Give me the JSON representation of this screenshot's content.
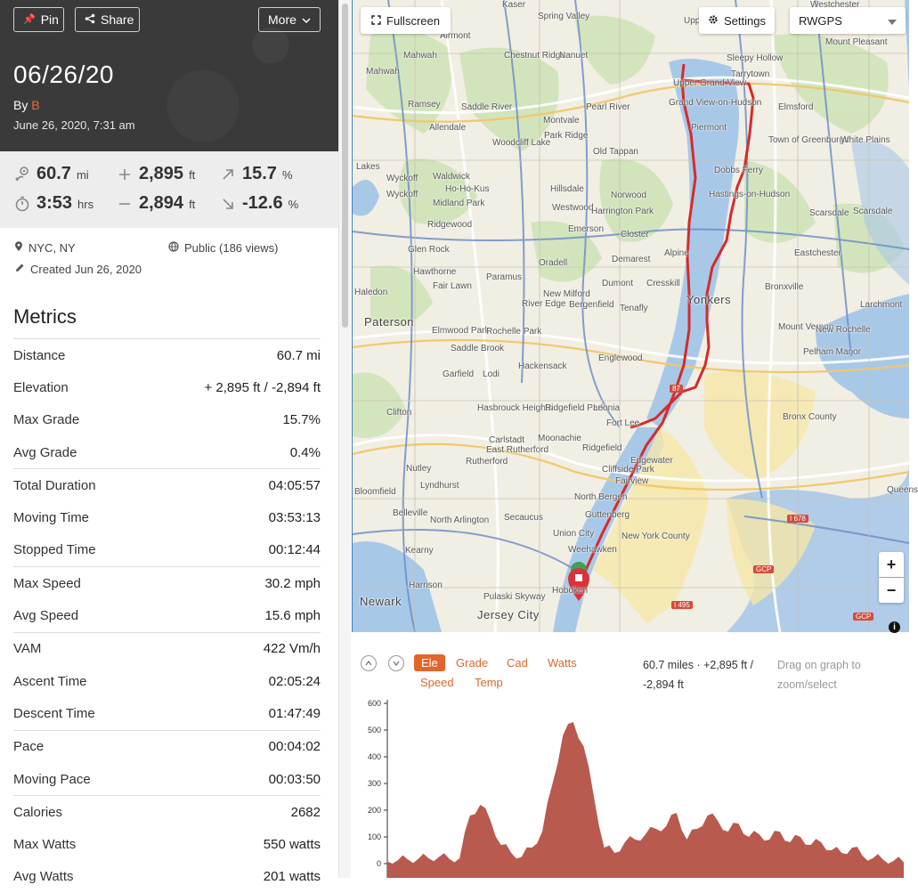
{
  "header": {
    "pin_label": "Pin",
    "share_label": "Share",
    "more_label": "More",
    "title": "06/26/20",
    "by_prefix": "By",
    "user": "B",
    "datetime": "June 26, 2020, 7:31 am"
  },
  "stats": {
    "distance": {
      "value": "60.7",
      "unit": "mi",
      "icon": "route-icon"
    },
    "gain": {
      "value": "2,895",
      "unit": "ft",
      "icon": "plus-icon"
    },
    "max_grade": {
      "value": "15.7",
      "unit": "%",
      "icon": "arrow-up-right-icon"
    },
    "duration": {
      "value": "3:53",
      "unit": "hrs",
      "icon": "stopwatch-icon"
    },
    "loss": {
      "value": "2,894",
      "unit": "ft",
      "icon": "minus-icon"
    },
    "min_grade": {
      "value": "-12.6",
      "unit": "%",
      "icon": "arrow-down-right-icon"
    }
  },
  "meta": {
    "location": "NYC, NY",
    "visibility": "Public (186 views)",
    "created": "Created Jun 26, 2020"
  },
  "metrics": {
    "title": "Metrics",
    "groups": [
      [
        {
          "label": "Distance",
          "value": "60.7 mi"
        },
        {
          "label": "Elevation",
          "value": "+ 2,895 ft / -2,894 ft"
        },
        {
          "label": "Max Grade",
          "value": "15.7%"
        },
        {
          "label": "Avg Grade",
          "value": "0.4%"
        }
      ],
      [
        {
          "label": "Total Duration",
          "value": "04:05:57"
        },
        {
          "label": "Moving Time",
          "value": "03:53:13"
        },
        {
          "label": "Stopped Time",
          "value": "00:12:44"
        }
      ],
      [
        {
          "label": "Max Speed",
          "value": "30.2 mph"
        },
        {
          "label": "Avg Speed",
          "value": "15.6 mph"
        }
      ],
      [
        {
          "label": "VAM",
          "value": "422 Vm/h"
        },
        {
          "label": "Ascent Time",
          "value": "02:05:24"
        },
        {
          "label": "Descent Time",
          "value": "01:47:49"
        }
      ],
      [
        {
          "label": "Pace",
          "value": "00:04:02"
        },
        {
          "label": "Moving Pace",
          "value": "00:03:50"
        }
      ],
      [
        {
          "label": "Calories",
          "value": "2682"
        },
        {
          "label": "Max Watts",
          "value": "550 watts"
        },
        {
          "label": "Avg Watts",
          "value": "201 watts"
        }
      ]
    ]
  },
  "map": {
    "fullscreen_label": "Fullscreen",
    "settings_label": "Settings",
    "layer": "RWGPS",
    "zoom_in": "+",
    "zoom_out": "−",
    "info": "i",
    "route_color": "#d42b2b",
    "labels": [
      "Kaser",
      "Spring Valley",
      "Westchester",
      "Airmont",
      "Chestnut Ridge",
      "Nanuet",
      "Upper Nyack",
      "Mount Pleasant",
      "Mahwah",
      "Mahwah",
      "Sleepy Hollow",
      "Tarrytown",
      "Ramsey",
      "Saddle River",
      "Pearl River",
      "Upper Grand View",
      "Grand View-on-Hudson",
      "Elmsford",
      "Allendale",
      "Montvale",
      "Park Ridge",
      "Piermont",
      "Town of Greenburgh",
      "White Plains",
      "Lakes",
      "Woodcliff Lake",
      "Old Tappan",
      "Dobbs Ferry",
      "Wyckoff",
      "Waldwick",
      "Hillsdale",
      "Norwood",
      "Hastings-on-Hudson",
      "Wyckoff",
      "Ho-Ho-Kus",
      "Midland Park",
      "Westwood",
      "Harrington Park",
      "Scarsdale",
      "Scarsdale",
      "Ridgewood",
      "Emerson",
      "Closter",
      "Glen Rock",
      "Demarest",
      "Alpine",
      "Eastchester",
      "Hawthorne",
      "Oradell",
      "Fair Lawn",
      "Paramus",
      "Dumont",
      "Cresskill",
      "Yonkers",
      "Haledon",
      "New Milford",
      "River Edge",
      "Bergenfield",
      "Tenafly",
      "Bronxville",
      "Larchmont",
      "Paterson",
      "Elmwood Park",
      "Rochelle Park",
      "Mount Vernon",
      "New Rochelle",
      "Saddle Brook",
      "Pelham Manor",
      "Englewood",
      "Hackensack",
      "Garfield",
      "Lodi",
      "Hasbrouck Heights",
      "Ridgefield Park",
      "Leonia",
      "Fort Lee",
      "Bronx County",
      "Clifton",
      "Carlstadt",
      "Moonachie",
      "East Rutherford",
      "Rutherford",
      "Ridgefield",
      "Edgewater",
      "Cliffside Park",
      "Fairview",
      "Nutley",
      "Lyndhurst",
      "North Bergen",
      "Bloomfield",
      "Belleville",
      "North Arlington",
      "Guttenberg",
      "New York County",
      "Secaucus",
      "Union City",
      "Kearny",
      "Weehawken",
      "Harrison",
      "Hoboken",
      "Newark",
      "Pulaski Skyway",
      "Jersey City",
      "Queens"
    ],
    "highways": [
      "87",
      "I 678",
      "I 495",
      "GCP",
      "GCP"
    ]
  },
  "elevation": {
    "tabs": [
      "Ele",
      "Grade",
      "Cad",
      "Watts",
      "Speed",
      "Temp"
    ],
    "active_tab": "Ele",
    "summary": "60.7 miles · +2,895 ft / -2,894 ft",
    "hint": "Drag on graph to zoom/select",
    "fill_color": "#b95a4e"
  },
  "chart_data": {
    "type": "area",
    "ylabel": "",
    "ylim": [
      0,
      600
    ],
    "yticks": [
      0,
      100,
      200,
      300,
      400,
      500,
      600
    ],
    "x": [
      0,
      0.02,
      0.04,
      0.06,
      0.08,
      0.1,
      0.12,
      0.14,
      0.16,
      0.18,
      0.2,
      0.22,
      0.24,
      0.26,
      0.28,
      0.3,
      0.32,
      0.34,
      0.36,
      0.38,
      0.4,
      0.42,
      0.44,
      0.46,
      0.48,
      0.5,
      0.52,
      0.54,
      0.56,
      0.58,
      0.6,
      0.62,
      0.64,
      0.66,
      0.68,
      0.7,
      0.72,
      0.74,
      0.76,
      0.78,
      0.8,
      0.82,
      0.84,
      0.86,
      0.88,
      0.9,
      0.92,
      0.94,
      0.96,
      0.98,
      1.0
    ],
    "values": [
      8,
      12,
      15,
      18,
      20,
      25,
      18,
      20,
      180,
      220,
      160,
      70,
      40,
      25,
      60,
      120,
      300,
      480,
      530,
      440,
      250,
      60,
      40,
      80,
      90,
      110,
      130,
      140,
      190,
      90,
      130,
      180,
      160,
      120,
      150,
      100,
      110,
      90,
      120,
      80,
      100,
      70,
      80,
      50,
      40,
      60,
      30,
      20,
      15,
      10,
      5
    ]
  }
}
